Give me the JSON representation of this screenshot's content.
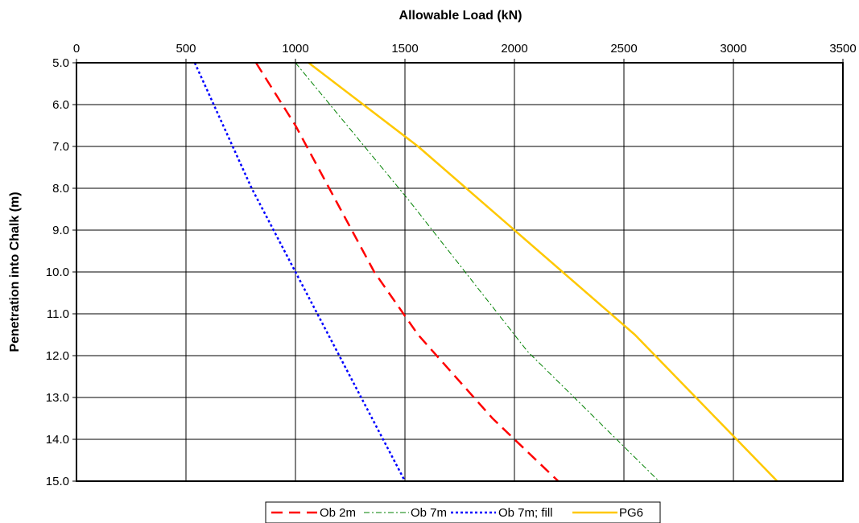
{
  "chart_data": {
    "type": "line",
    "title": "",
    "xlabel": "Allowable Load (kN)",
    "ylabel": "Penetration into Chalk (m)",
    "x_axis_position": "top",
    "y_axis_inverted": true,
    "xlim": [
      0,
      3500
    ],
    "ylim": [
      5.0,
      15.0
    ],
    "x_ticks": [
      "0",
      "500",
      "1000",
      "1500",
      "2000",
      "2500",
      "3000",
      "3500"
    ],
    "y_ticks": [
      "5.0",
      "6.0",
      "7.0",
      "8.0",
      "9.0",
      "10.0",
      "11.0",
      "12.0",
      "13.0",
      "14.0",
      "15.0"
    ],
    "grid": true,
    "legend_position": "bottom",
    "series": [
      {
        "name": "Ob 2m",
        "color": "#ff0000",
        "dash": "long-dash",
        "points": [
          [
            820,
            5.0
          ],
          [
            1000,
            6.5
          ],
          [
            1360,
            10.0
          ],
          [
            1560,
            11.5
          ],
          [
            1900,
            13.5
          ],
          [
            2200,
            15.0
          ]
        ]
      },
      {
        "name": "Ob 7m",
        "color": "#008000",
        "dash": "dash-dot",
        "points": [
          [
            1000,
            5.0
          ],
          [
            1520,
            8.3
          ],
          [
            2060,
            11.9
          ],
          [
            2660,
            15.0
          ]
        ]
      },
      {
        "name": "Ob 7m; fill",
        "color": "#0000ff",
        "dash": "dotted",
        "points": [
          [
            540,
            5.0
          ],
          [
            800,
            8.0
          ],
          [
            1000,
            10.0
          ],
          [
            1500,
            15.0
          ]
        ]
      },
      {
        "name": "PG6",
        "color": "#ffc800",
        "dash": "solid",
        "points": [
          [
            1060,
            5.0
          ],
          [
            1560,
            7.0
          ],
          [
            2550,
            11.5
          ],
          [
            3200,
            15.0
          ]
        ]
      }
    ]
  }
}
